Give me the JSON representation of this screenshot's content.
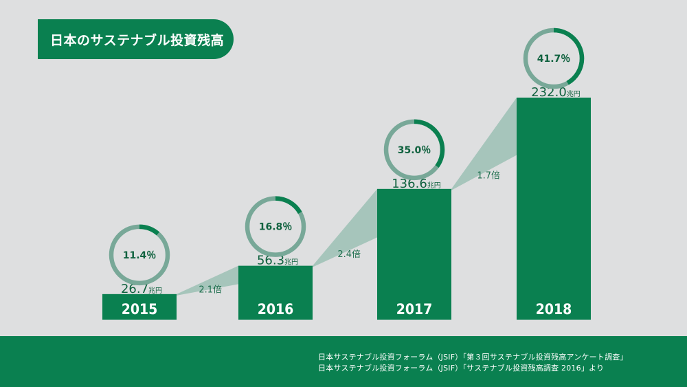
{
  "title": "日本のサステナブル投資残高",
  "sources": [
    "日本サステナブル投資フォーラム（JSIF）「第３回サステナブル投資残高アンケート調査」",
    "日本サステナブル投資フォーラム（JSIF）「サステナブル投資残高調査 2016」より"
  ],
  "colors": {
    "green": "#0a8050",
    "ring": "#78a898",
    "connector": "#a6c5bb",
    "background": "#dedfe0"
  },
  "chart_data": {
    "type": "bar",
    "categories": [
      "2015",
      "2016",
      "2017",
      "2018"
    ],
    "values": [
      26.7,
      56.3,
      136.6,
      232.0
    ],
    "value_labels": [
      "26.7",
      "56.3",
      "136.6",
      "232.0"
    ],
    "unit": "兆円",
    "share_percent": [
      11.4,
      16.8,
      35.0,
      41.7
    ],
    "share_labels": [
      "11.4％",
      "16.8％",
      "35.0％",
      "41.7％"
    ],
    "growth_labels": [
      "2.1倍",
      "2.4倍",
      "1.7倍"
    ],
    "ylim": [
      0,
      232.0
    ]
  }
}
